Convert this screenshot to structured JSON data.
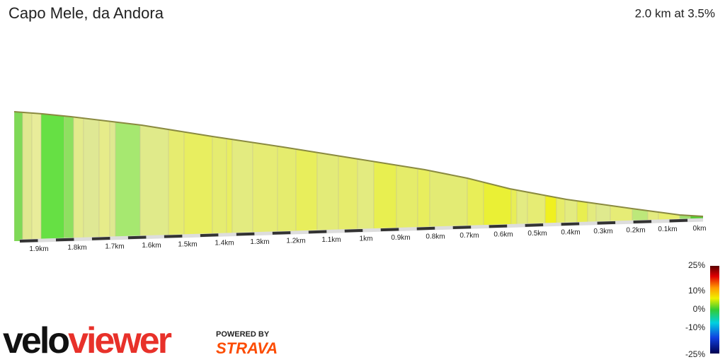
{
  "title": "Capo Mele, da Andora",
  "summary": "2.0 km at 3.5%",
  "distance_labels": [
    "1.9km",
    "1.8km",
    "1.7km",
    "1.6km",
    "1.5km",
    "1.4km",
    "1.3km",
    "1.2km",
    "1.1km",
    "1km",
    "0.9km",
    "0.8km",
    "0.7km",
    "0.6km",
    "0.5km",
    "0.4km",
    "0.3km",
    "0.2km",
    "0.1km",
    "0km"
  ],
  "gradient_legend": {
    "ticks": [
      "25%",
      "10%",
      "0%",
      "-10%",
      "-25%"
    ]
  },
  "branding": {
    "logo_a": "velo",
    "logo_b": "viewer",
    "powered_by": "POWERED BY",
    "partner": "STRAVA"
  }
}
